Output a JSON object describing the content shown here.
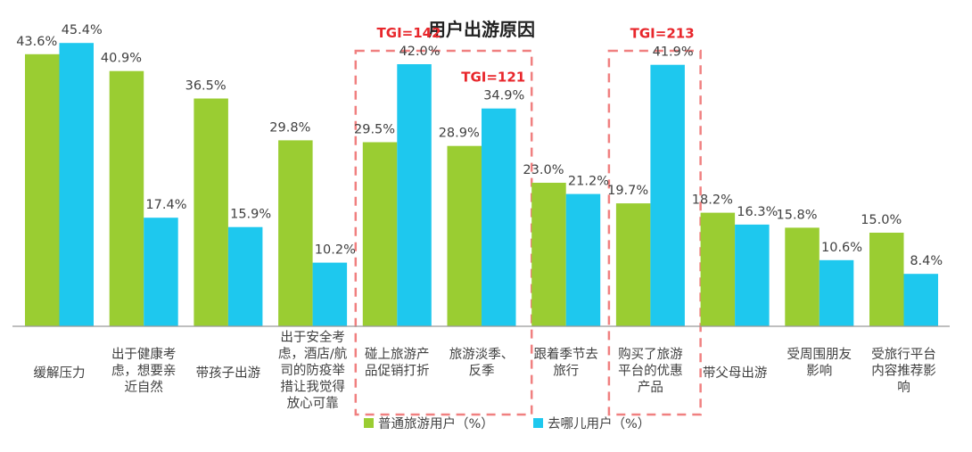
{
  "chart_data": {
    "type": "bar",
    "title": "用户出游原因",
    "xlabel": "",
    "ylabel": "",
    "ylim": [
      0,
      50
    ],
    "grid": false,
    "legend_position": "bottom",
    "categories": [
      "缓解压力",
      "出于健康考虑，想要亲近自然",
      "带孩子出游",
      "出于安全考虑，酒店/航司的防疫举措让我觉得放心可靠",
      "碰上旅游产品促销打折",
      "旅游淡季、反季",
      "跟着季节去旅行",
      "购买了旅游平台的优惠产品",
      "带父母出游",
      "受周围朋友影响",
      "受旅行平台内容推荐影响"
    ],
    "category_lines": [
      [
        "缓解压力"
      ],
      [
        "出于健康考",
        "虑，想要亲",
        "近自然"
      ],
      [
        "带孩子出游"
      ],
      [
        "出于安全考",
        "虑，酒店/航",
        "司的防疫举",
        "措让我觉得",
        "放心可靠"
      ],
      [
        "碰上旅游产",
        "品促销打折"
      ],
      [
        "旅游淡季、",
        "反季"
      ],
      [
        "跟着季节去",
        "旅行"
      ],
      [
        "购买了旅游",
        "平台的优惠",
        "产品"
      ],
      [
        "带父母出游"
      ],
      [
        "受周围朋友",
        "影响"
      ],
      [
        "受旅行平台",
        "内容推荐影",
        "响"
      ]
    ],
    "series": [
      {
        "name": "普通旅游用户（%）",
        "color": "#9ACD32",
        "values": [
          43.6,
          40.9,
          36.5,
          29.8,
          29.5,
          28.9,
          23.0,
          19.7,
          18.2,
          15.8,
          15.0
        ],
        "labels": [
          "43.6%",
          "40.9%",
          "36.5%",
          "29.8%",
          "29.5%",
          "28.9%",
          "23.0%",
          "19.7%",
          "18.2%",
          "15.8%",
          "15.0%"
        ]
      },
      {
        "name": "去哪儿用户（%）",
        "color": "#1EC8EE",
        "values": [
          45.4,
          17.4,
          15.9,
          10.2,
          42.0,
          34.9,
          21.2,
          41.9,
          16.3,
          10.6,
          8.4
        ],
        "labels": [
          "45.4%",
          "17.4%",
          "15.9%",
          "10.2%",
          "42.0%",
          "34.9%",
          "21.2%",
          "41.9%",
          "16.3%",
          "10.6%",
          "8.4%"
        ]
      }
    ],
    "annotations": [
      {
        "text": "TGI=142",
        "category_index": 4,
        "color": "#E8262B"
      },
      {
        "text": "TGI=121",
        "category_index": 5,
        "color": "#E8262B"
      },
      {
        "text": "TGI=213",
        "category_index": 7,
        "color": "#E8262B"
      }
    ],
    "highlight_boxes": [
      {
        "from_index": 4,
        "to_index": 5,
        "color": "#F08080"
      },
      {
        "from_index": 7,
        "to_index": 7,
        "color": "#F08080"
      }
    ],
    "axis_color": "#999999",
    "text_color": "#404040"
  }
}
